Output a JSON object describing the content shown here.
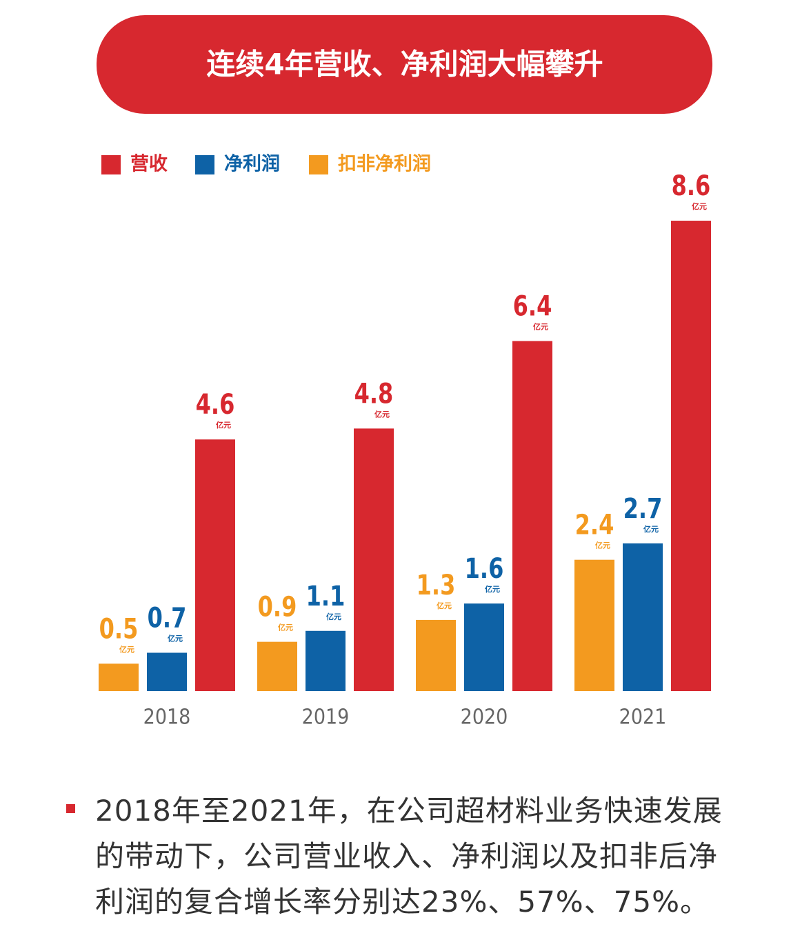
{
  "chart_data": {
    "type": "bar",
    "title": "连续4年营收、净利润大幅攀升",
    "categories": [
      "2018",
      "2019",
      "2020",
      "2021"
    ],
    "unit": "亿元",
    "series": [
      {
        "name": "营收",
        "color": "#d7282f",
        "values": [
          4.6,
          4.8,
          6.4,
          8.6
        ]
      },
      {
        "name": "净利润",
        "color": "#0e62a6",
        "values": [
          0.7,
          1.1,
          1.6,
          2.7
        ]
      },
      {
        "name": "扣非净利润",
        "color": "#f39a1f",
        "values": [
          0.5,
          0.9,
          1.3,
          2.4
        ]
      }
    ],
    "note": "2018年至2021年，在公司超材料业务快速发展的带动下，公司营业收入、净利润以及扣非后净利润的复合增长率分别达23%、57%、75%。"
  }
}
